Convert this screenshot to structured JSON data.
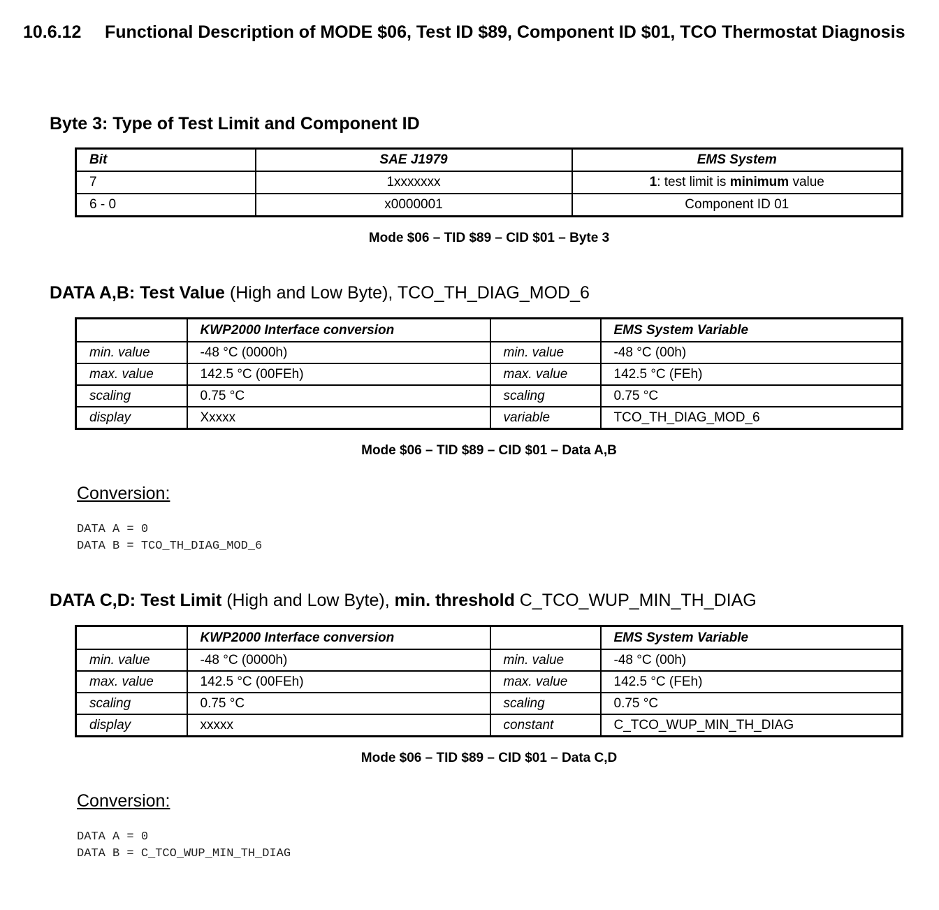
{
  "section": {
    "number": "10.6.12",
    "title": "Functional Description of MODE $06, Test ID $89, Component ID $01, TCO Thermostat Diagnosis"
  },
  "byte3": {
    "heading": "Byte 3: Type of Test Limit and Component ID",
    "headers": [
      "Bit",
      "SAE J1979",
      "EMS System"
    ],
    "rows": [
      {
        "bit": "7",
        "sae": "1xxxxxxx",
        "ems_bold1": "1",
        "ems_text1": ": test limit is ",
        "ems_bold2": "minimum",
        "ems_text2": " value"
      },
      {
        "bit": "6 - 0",
        "sae": "x0000001",
        "ems": "Component ID 01"
      }
    ],
    "caption": "Mode $06 – TID $89 – CID $01 –  Byte 3"
  },
  "data_ab": {
    "heading": {
      "p1": "DATA A,B: Test Value",
      "p2": " (High and Low Byte), TCO_TH_DIAG_MOD_6"
    },
    "headers": [
      "",
      "KWP2000 Interface conversion",
      "",
      "EMS System Variable"
    ],
    "rows": [
      [
        "min. value",
        "-48 °C (0000h)",
        "min. value",
        "-48 °C (00h)"
      ],
      [
        "max. value",
        "142.5 °C (00FEh)",
        "max. value",
        "142.5 °C (FEh)"
      ],
      [
        "scaling",
        "0.75 °C",
        "scaling",
        "0.75 °C"
      ],
      [
        "display",
        "Xxxxx",
        "variable",
        "TCO_TH_DIAG_MOD_6"
      ]
    ],
    "caption": "Mode $06 – TID $89 – CID $01 –  Data A,B",
    "conversion_label": "Conversion:",
    "conversion_code": "DATA A = 0\nDATA B = TCO_TH_DIAG_MOD_6"
  },
  "data_cd": {
    "heading": {
      "p1": "DATA C,D: Test Limit",
      "p2": " (High and Low Byte), ",
      "p3": "min. threshold",
      "p4": " C_TCO_WUP_MIN_TH_DIAG"
    },
    "headers": [
      "",
      "KWP2000 Interface conversion",
      "",
      "EMS System Variable"
    ],
    "rows": [
      [
        "min. value",
        "-48 °C (0000h)",
        "min. value",
        "-48 °C (00h)"
      ],
      [
        "max. value",
        "142.5 °C (00FEh)",
        "max. value",
        "142.5 °C (FEh)"
      ],
      [
        "scaling",
        "0.75 °C",
        "scaling",
        "0.75 °C"
      ],
      [
        "display",
        "xxxxx",
        "constant",
        "C_TCO_WUP_MIN_TH_DIAG"
      ]
    ],
    "caption": "Mode $06 – TID $89 – CID $01 –  Data C,D",
    "conversion_label": "Conversion:",
    "conversion_code": "DATA A = 0\nDATA B = C_TCO_WUP_MIN_TH_DIAG"
  }
}
